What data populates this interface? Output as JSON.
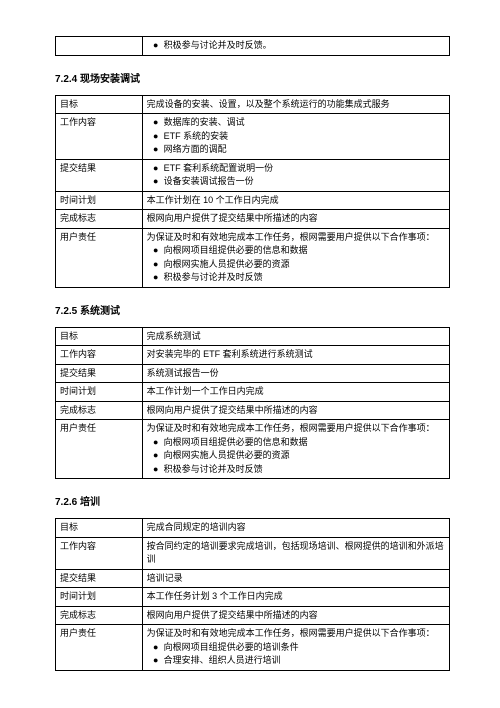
{
  "glyphs": {
    "bullet": "●"
  },
  "tableTop": {
    "leftBlank": "",
    "rightLine": "积极参与讨论并及时反馈。"
  },
  "section724": {
    "heading": "7.2.4 现场安装调试",
    "rows": {
      "goal": {
        "label": "目标",
        "text": "完成设备的安装、设置，以及整个系统运行的功能集成式服务"
      },
      "content": {
        "label": "工作内容",
        "bullets": [
          "数据库的安装、调试",
          "ETF 系统的安装",
          "网络方面的调配"
        ]
      },
      "deliverable": {
        "label": "提交结果",
        "bullets": [
          "ETF 套利系统配置说明一份",
          "设备安装调试报告一份"
        ]
      },
      "schedule": {
        "label": "时间计划",
        "text": "本工作计划在 10 个工作日内完成"
      },
      "doneFlag": {
        "label": "完成标志",
        "text": "根网向用户提供了提交结果中所描述的内容"
      },
      "userDuty": {
        "label": "用户责任",
        "intro": "为保证及时和有效地完成本工作任务，根网需要用户提供以下合作事项：",
        "bullets": [
          "向根网项目组提供必要的信息和数据",
          "向根网实施人员提供必要的资源",
          "积极参与讨论并及时反馈"
        ]
      }
    }
  },
  "section725": {
    "heading": "7.2.5 系统测试",
    "rows": {
      "goal": {
        "label": "目标",
        "text": "完成系统测试"
      },
      "content": {
        "label": "工作内容",
        "text": "对安装完毕的 ETF 套利系统进行系统测试"
      },
      "deliverable": {
        "label": "提交结果",
        "text": "系统测试报告一份"
      },
      "schedule": {
        "label": "时间计划",
        "text": "本工作计划一个工作日内完成"
      },
      "doneFlag": {
        "label": "完成标志",
        "text": "根网向用户提供了提交结果中所描述的内容"
      },
      "userDuty": {
        "label": "用户责任",
        "intro": "为保证及时和有效地完成本工作任务，根网需要用户提供以下合作事项：",
        "bullets": [
          "向根网项目组提供必要的信息和数据",
          "向根网实施人员提供必要的资源",
          "积极参与讨论并及时反馈"
        ]
      }
    }
  },
  "section726": {
    "heading": "7.2.6 培训",
    "rows": {
      "goal": {
        "label": "目标",
        "text": "完成合同规定的培训内容"
      },
      "content": {
        "label": "工作内容",
        "text": "按合同约定的培训要求完成培训，包括现场培训、根网提供的培训和外派培训"
      },
      "deliverable": {
        "label": "提交结果",
        "text": "培训记录"
      },
      "schedule": {
        "label": "时间计划",
        "text": "本工作任务计划 3 个工作日内完成"
      },
      "doneFlag": {
        "label": "完成标志",
        "text": "根网向用户提供了提交结果中所描述的内容"
      },
      "userDuty": {
        "label": "用户责任",
        "intro": "为保证及时和有效地完成本工作任务，根网需要用户提供以下合作事项：",
        "bullets": [
          "向根网项目组提供必要的培训条件",
          "合理安排、组织人员进行培训"
        ]
      }
    }
  }
}
